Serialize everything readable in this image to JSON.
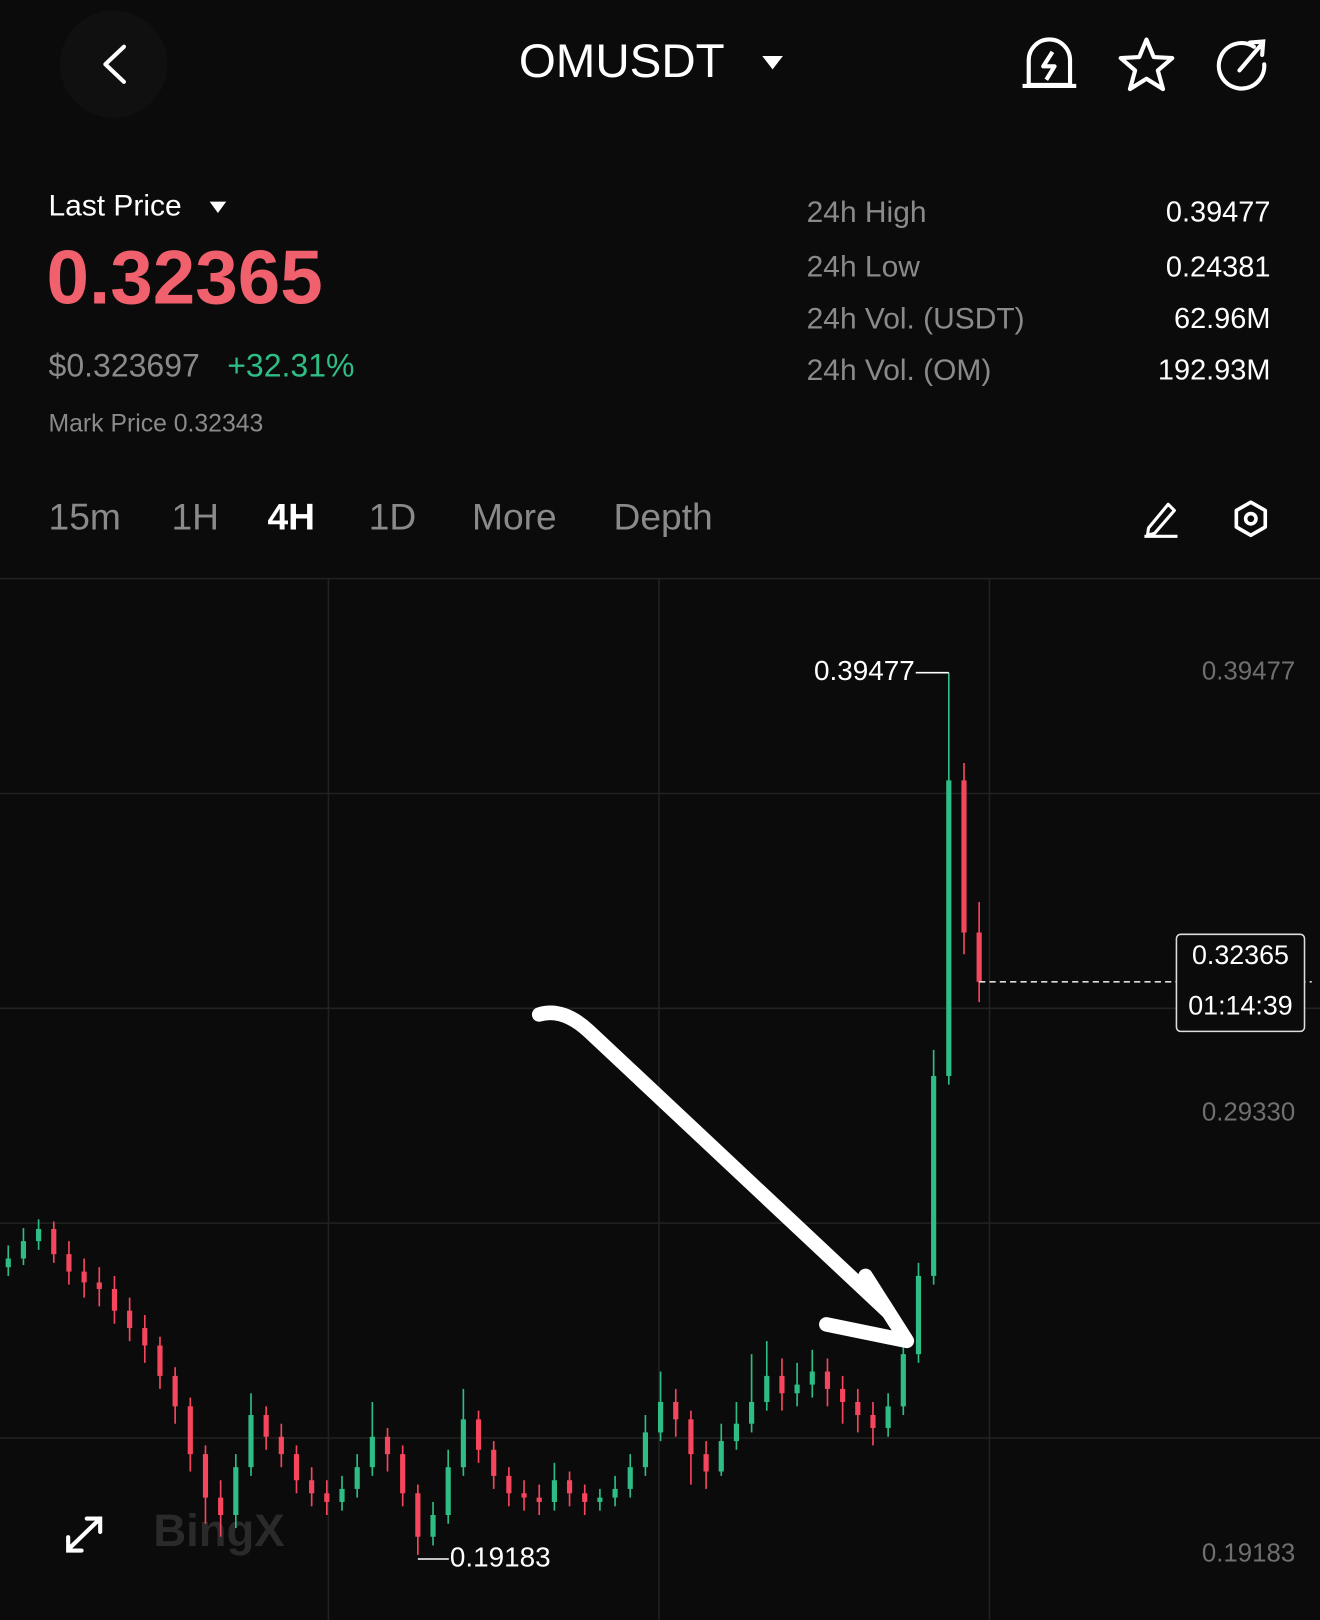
{
  "header": {
    "symbol": "OMUSDT"
  },
  "ticker": {
    "last_price_label": "Last Price",
    "last_price": "0.32365",
    "usd_price": "$0.323697",
    "change": "+32.31%",
    "mark_price": "Mark Price 0.32343",
    "stats": [
      {
        "label": "24h High",
        "value": "0.39477"
      },
      {
        "label": "24h Low",
        "value": "0.24381"
      },
      {
        "label": "24h Vol. (USDT)",
        "value": "62.96M"
      },
      {
        "label": "24h Vol. (OM)",
        "value": "192.93M"
      }
    ]
  },
  "timeframes": [
    "15m",
    "1H",
    "4H",
    "1D",
    "More",
    "Depth"
  ],
  "active_timeframe": 2,
  "chart_data": {
    "type": "candlestick",
    "up_color": "#2ebd85",
    "down_color": "#f6465d",
    "watermark": "BingX",
    "ylim": [
      0.1769,
      0.4164
    ],
    "yticks": [
      0.39477,
      {
        "value": 0.2933,
        "label": "0.29330"
      },
      0.19183
    ],
    "high_marker": 0.39477,
    "low_marker": 0.19183,
    "last_price": 0.32365,
    "countdown": "01:14:39",
    "open": [
      0.258,
      0.26,
      0.264,
      0.2668,
      0.261,
      0.257,
      0.2545,
      0.253,
      0.248,
      0.244,
      0.24,
      0.233,
      0.226,
      0.215,
      0.205,
      0.201,
      0.212,
      0.224,
      0.219,
      0.215,
      0.209,
      0.206,
      0.204,
      0.207,
      0.212,
      0.219,
      0.215,
      0.206,
      0.196,
      0.201,
      0.212,
      0.223,
      0.216,
      0.21,
      0.206,
      0.205,
      0.204,
      0.209,
      0.206,
      0.204,
      0.205,
      0.207,
      0.212,
      0.22,
      0.227,
      0.223,
      0.215,
      0.211,
      0.218,
      0.222,
      0.227,
      0.233,
      0.229,
      0.231,
      0.234,
      0.23,
      0.227,
      0.224,
      0.221,
      0.226,
      0.238,
      0.256,
      0.302,
      0.37,
      0.335
    ],
    "high": [
      0.263,
      0.267,
      0.269,
      0.2685,
      0.264,
      0.26,
      0.258,
      0.256,
      0.251,
      0.247,
      0.242,
      0.235,
      0.228,
      0.217,
      0.209,
      0.215,
      0.229,
      0.226,
      0.222,
      0.217,
      0.212,
      0.209,
      0.21,
      0.215,
      0.227,
      0.221,
      0.217,
      0.208,
      0.204,
      0.216,
      0.23,
      0.225,
      0.218,
      0.212,
      0.209,
      0.208,
      0.213,
      0.211,
      0.208,
      0.207,
      0.21,
      0.215,
      0.224,
      0.234,
      0.23,
      0.225,
      0.218,
      0.222,
      0.227,
      0.238,
      0.241,
      0.237,
      0.236,
      0.239,
      0.237,
      0.233,
      0.23,
      0.227,
      0.229,
      0.241,
      0.259,
      0.308,
      0.39477,
      0.374,
      0.342
    ],
    "low": [
      0.256,
      0.2585,
      0.262,
      0.259,
      0.254,
      0.251,
      0.249,
      0.245,
      0.241,
      0.236,
      0.23,
      0.222,
      0.211,
      0.199,
      0.196,
      0.198,
      0.21,
      0.216,
      0.212,
      0.206,
      0.203,
      0.201,
      0.202,
      0.205,
      0.21,
      0.211,
      0.203,
      0.19183,
      0.194,
      0.199,
      0.21,
      0.213,
      0.207,
      0.203,
      0.202,
      0.201,
      0.202,
      0.203,
      0.201,
      0.202,
      0.203,
      0.205,
      0.21,
      0.218,
      0.219,
      0.208,
      0.207,
      0.21,
      0.216,
      0.22,
      0.225,
      0.225,
      0.226,
      0.228,
      0.226,
      0.222,
      0.22,
      0.217,
      0.219,
      0.224,
      0.236,
      0.254,
      0.3,
      0.33,
      0.319
    ],
    "close": [
      0.26,
      0.264,
      0.2668,
      0.261,
      0.257,
      0.2545,
      0.253,
      0.248,
      0.244,
      0.24,
      0.233,
      0.226,
      0.215,
      0.205,
      0.201,
      0.212,
      0.224,
      0.219,
      0.215,
      0.209,
      0.206,
      0.204,
      0.207,
      0.212,
      0.219,
      0.215,
      0.206,
      0.196,
      0.201,
      0.212,
      0.223,
      0.216,
      0.21,
      0.206,
      0.205,
      0.204,
      0.209,
      0.206,
      0.204,
      0.205,
      0.207,
      0.212,
      0.22,
      0.227,
      0.223,
      0.215,
      0.211,
      0.218,
      0.222,
      0.227,
      0.233,
      0.229,
      0.231,
      0.234,
      0.23,
      0.227,
      0.224,
      0.221,
      0.226,
      0.238,
      0.256,
      0.302,
      0.37,
      0.335,
      0.32365
    ]
  }
}
